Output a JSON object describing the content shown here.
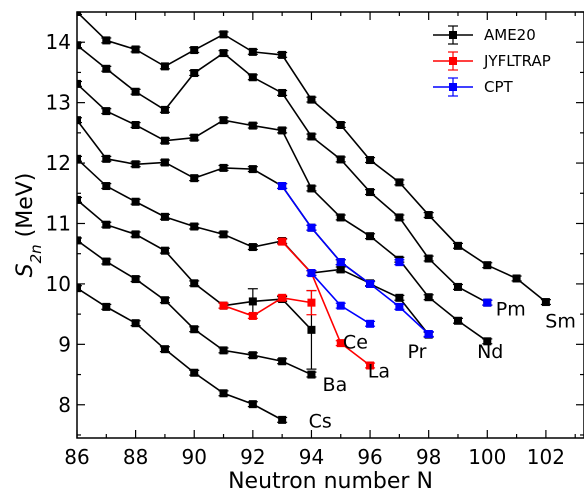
{
  "chart_data": {
    "type": "line",
    "title": "",
    "xlabel": "Neutron number N",
    "ylabel_main": "S",
    "ylabel_sub": "2n",
    "ylabel_unit": " (MeV)",
    "xlim": [
      86,
      103.3
    ],
    "ylim": [
      7.45,
      14.5
    ],
    "xticks": [
      86,
      88,
      90,
      92,
      94,
      96,
      98,
      100,
      102
    ],
    "yticks": [
      8,
      9,
      10,
      11,
      12,
      13,
      14
    ],
    "grid": false,
    "legend_position": "top-right",
    "colors": {
      "AME20": "#000000",
      "JYFLTRAP": "#ff0000",
      "CPT": "#0000ff"
    },
    "legend": [
      "AME20",
      "JYFLTRAP",
      "CPT"
    ],
    "series": [
      {
        "element": "Cs",
        "kind": "AME20",
        "x": [
          86,
          87,
          88,
          89,
          90,
          91,
          92,
          93
        ],
        "y": [
          9.93,
          9.62,
          9.35,
          8.92,
          8.53,
          8.19,
          8.01,
          7.75
        ]
      },
      {
        "element": "Ba",
        "kind": "AME20",
        "x": [
          86,
          87,
          88,
          89,
          90,
          91,
          92,
          93,
          94
        ],
        "y": [
          10.72,
          10.37,
          10.08,
          9.73,
          9.25,
          8.9,
          8.82,
          8.72,
          8.5
        ]
      },
      {
        "element": "La",
        "kind": "AME20",
        "x": [
          86,
          87,
          88,
          89,
          90,
          91,
          92,
          93,
          94
        ],
        "y": [
          11.39,
          10.98,
          10.82,
          10.55,
          10.01,
          9.64,
          9.71,
          9.75,
          9.24
        ],
        "yerr": [
          0,
          0,
          0,
          0,
          0,
          0,
          0.21,
          0,
          0.65
        ]
      },
      {
        "element": "Ce",
        "kind": "AME20",
        "x": [
          86,
          87,
          88,
          89,
          90,
          91,
          92,
          93,
          94,
          95,
          96
        ],
        "y": [
          12.07,
          11.62,
          11.36,
          11.11,
          10.95,
          10.82,
          10.61,
          10.71,
          10.18,
          10.24,
          10.01
        ]
      },
      {
        "element": "Pr",
        "kind": "AME20",
        "x": [
          86,
          87,
          88,
          89,
          90,
          91,
          92,
          93,
          94,
          95,
          96,
          97,
          98
        ],
        "y": [
          12.71,
          12.07,
          11.98,
          12.01,
          11.75,
          11.92,
          11.9,
          11.62,
          10.93,
          10.36,
          10.0,
          9.77,
          9.16
        ]
      },
      {
        "element": "Nd",
        "kind": "AME20",
        "x": [
          86,
          87,
          88,
          89,
          90,
          91,
          92,
          93,
          94,
          95,
          96,
          97,
          98,
          99,
          100
        ],
        "y": [
          13.31,
          12.86,
          12.63,
          12.37,
          12.42,
          12.71,
          12.62,
          12.54,
          11.58,
          11.1,
          10.79,
          10.4,
          9.78,
          9.39,
          9.05
        ]
      },
      {
        "element": "Pm",
        "kind": "AME20",
        "x": [
          86,
          87,
          88,
          89,
          90,
          91,
          92,
          93,
          94,
          95,
          96,
          97,
          98,
          99,
          100
        ],
        "y": [
          13.95,
          13.56,
          13.18,
          12.88,
          13.49,
          13.82,
          13.42,
          13.16,
          12.44,
          12.06,
          11.52,
          11.1,
          10.42,
          9.95,
          9.69
        ]
      },
      {
        "element": "Sm",
        "kind": "AME20",
        "x": [
          86,
          87,
          88,
          89,
          90,
          91,
          92,
          93,
          94,
          95,
          96,
          97,
          98,
          99,
          100,
          101,
          102
        ],
        "y": [
          14.5,
          14.03,
          13.88,
          13.6,
          13.87,
          14.13,
          13.84,
          13.79,
          13.05,
          12.63,
          12.05,
          11.68,
          11.14,
          10.63,
          10.31,
          10.09,
          9.7
        ]
      },
      {
        "element": "La",
        "kind": "JYFLTRAP",
        "x": [
          91,
          92,
          93,
          94
        ],
        "y": [
          9.64,
          9.47,
          9.77,
          9.69
        ],
        "yerr": [
          0,
          0,
          0,
          0.2
        ]
      },
      {
        "element": "Ba",
        "kind": "JYFLTRAP",
        "x": [
          93,
          94,
          95,
          96
        ],
        "y": [
          10.7,
          10.18,
          9.02,
          8.65
        ]
      },
      {
        "element": "Pr",
        "kind": "CPT",
        "x": [
          93,
          94,
          95,
          96,
          97,
          98
        ],
        "y": [
          11.62,
          10.93,
          10.36,
          10.0,
          9.62,
          9.17
        ]
      },
      {
        "element": "Ce",
        "kind": "CPT",
        "x": [
          94,
          95,
          96
        ],
        "y": [
          10.18,
          9.64,
          9.34
        ]
      },
      {
        "element": "Pm",
        "kind": "CPT",
        "x": [
          97
        ],
        "y": [
          10.36
        ]
      },
      {
        "element": "Sm",
        "kind": "CPT",
        "x": [
          100
        ],
        "y": [
          9.69
        ]
      },
      {
        "element": "Nd",
        "kind": "CPT",
        "x": [
          98
        ],
        "y": [
          9.17
        ]
      }
    ],
    "element_labels": [
      {
        "text": "Cs",
        "x": 94.3,
        "y": 7.62
      },
      {
        "text": "Ba",
        "x": 94.8,
        "y": 8.23
      },
      {
        "text": "La",
        "x": 96.3,
        "y": 8.45
      },
      {
        "text": "Ce",
        "x": 95.5,
        "y": 8.93
      },
      {
        "text": "Pr",
        "x": 97.6,
        "y": 8.77
      },
      {
        "text": "Nd",
        "x": 100.1,
        "y": 8.77
      },
      {
        "text": "Pm",
        "x": 100.8,
        "y": 9.48
      },
      {
        "text": "Sm",
        "x": 102.5,
        "y": 9.28
      }
    ]
  }
}
